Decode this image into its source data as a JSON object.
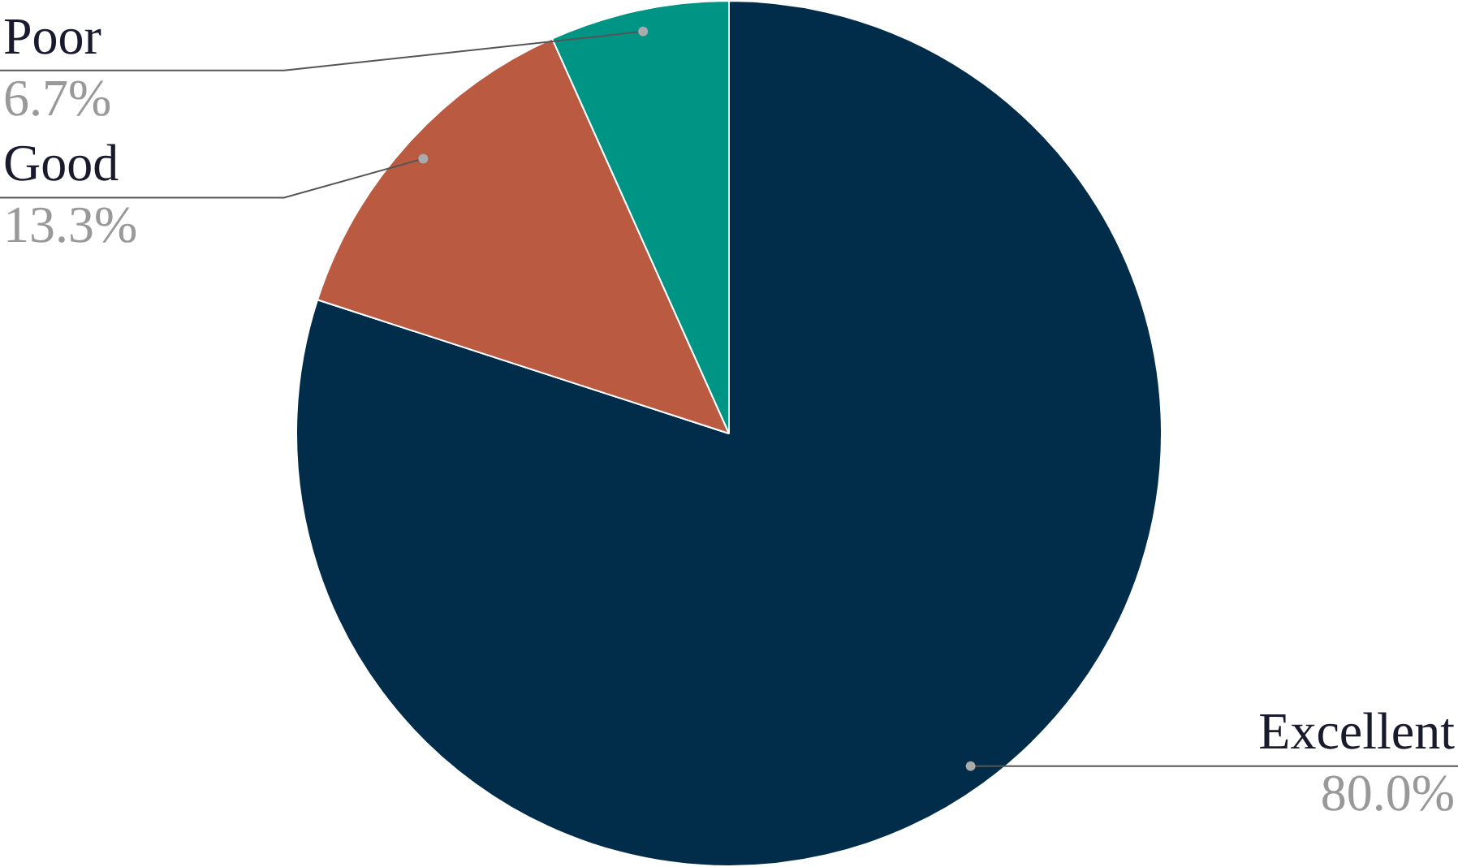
{
  "chart_data": {
    "type": "pie",
    "categories": [
      "Excellent",
      "Good",
      "Poor"
    ],
    "values": [
      80.0,
      13.3,
      6.7
    ],
    "colors": [
      "#022d4a",
      "#b95a41",
      "#009485"
    ],
    "value_labels": [
      "80.0%",
      "13.3%",
      "6.7%"
    ],
    "legend": false
  }
}
